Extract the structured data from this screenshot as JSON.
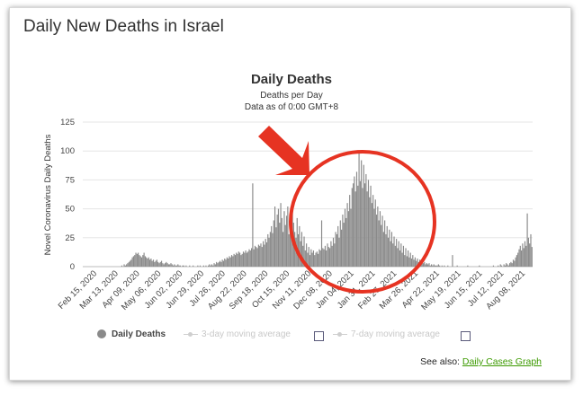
{
  "page": {
    "title": "Daily New Deaths in Israel"
  },
  "chart_data": {
    "type": "bar",
    "title": "Daily Deaths",
    "subtitle_1": "Deaths per Day",
    "subtitle_2": "Data as of 0:00 GMT+8",
    "ylabel": "Novel Coronavirus Daily Deaths",
    "ylim": [
      0,
      125
    ],
    "yticks": [
      "0",
      "25",
      "50",
      "75",
      "100",
      "125"
    ],
    "grid": true,
    "xticks": [
      "Feb 15, 2020",
      "Mar 13, 2020",
      "Apr 09, 2020",
      "May 06, 2020",
      "Jun 02, 2020",
      "Jun 29, 2020",
      "Jul 26, 2020",
      "Aug 22, 2020",
      "Sep 18, 2020",
      "Oct 15, 2020",
      "Nov 11, 2020",
      "Dec 08, 2020",
      "Jan 04, 2021",
      "Jan 31, 2021",
      "Feb 27, 2021",
      "Mar 26, 2021",
      "Apr 22, 2021",
      "May 19, 2021",
      "Jun 15, 2021",
      "Jul 12, 2021",
      "Aug 08, 2021"
    ],
    "series_name": "Daily Deaths",
    "values": [
      0,
      0,
      0,
      0,
      0,
      0,
      0,
      0,
      0,
      0,
      0,
      0,
      0,
      0,
      0,
      0,
      0,
      0,
      0,
      0,
      0,
      0,
      0,
      0,
      0,
      0,
      0,
      0,
      0,
      0,
      0,
      0,
      0,
      1,
      0,
      2,
      1,
      2,
      3,
      4,
      5,
      6,
      8,
      9,
      10,
      12,
      11,
      12,
      10,
      9,
      8,
      10,
      12,
      9,
      8,
      7,
      8,
      6,
      7,
      5,
      6,
      4,
      5,
      6,
      4,
      3,
      4,
      5,
      3,
      2,
      3,
      4,
      3,
      2,
      2,
      3,
      2,
      1,
      2,
      1,
      1,
      2,
      1,
      1,
      0,
      1,
      1,
      0,
      1,
      0,
      0,
      1,
      0,
      0,
      1,
      0,
      0,
      0,
      1,
      0,
      1,
      0,
      0,
      1,
      0,
      1,
      0,
      1,
      2,
      1,
      2,
      1,
      3,
      2,
      4,
      3,
      4,
      5,
      4,
      6,
      5,
      7,
      6,
      8,
      7,
      9,
      8,
      10,
      9,
      11,
      10,
      12,
      11,
      13,
      12,
      10,
      11,
      13,
      12,
      14,
      12,
      13,
      15,
      14,
      16,
      72,
      15,
      18,
      17,
      16,
      19,
      18,
      20,
      17,
      22,
      19,
      24,
      21,
      28,
      25,
      30,
      35,
      29,
      40,
      52,
      34,
      45,
      50,
      38,
      55,
      42,
      30,
      48,
      36,
      44,
      52,
      28,
      40,
      33,
      46,
      38,
      30,
      25,
      42,
      28,
      35,
      22,
      30,
      18,
      26,
      14,
      20,
      12,
      17,
      10,
      15,
      12,
      14,
      10,
      12,
      13,
      11,
      15,
      14,
      40,
      16,
      15,
      18,
      14,
      20,
      17,
      16,
      22,
      18,
      25,
      20,
      30,
      28,
      35,
      25,
      40,
      32,
      45,
      38,
      50,
      42,
      55,
      48,
      62,
      50,
      68,
      72,
      78,
      65,
      82,
      70,
      98,
      74,
      92,
      68,
      88,
      72,
      80,
      65,
      75,
      60,
      70,
      55,
      62,
      50,
      58,
      45,
      52,
      40,
      48,
      36,
      44,
      30,
      40,
      28,
      35,
      25,
      32,
      22,
      30,
      20,
      26,
      18,
      24,
      16,
      22,
      14,
      20,
      12,
      18,
      10,
      16,
      9,
      14,
      8,
      12,
      7,
      10,
      6,
      8,
      5,
      7,
      4,
      6,
      3,
      5,
      3,
      4,
      2,
      3,
      2,
      3,
      1,
      2,
      1,
      2,
      1,
      1,
      1,
      2,
      1,
      0,
      1,
      0,
      1,
      0,
      0,
      1,
      0,
      0,
      0,
      10,
      0,
      0,
      0,
      1,
      0,
      0,
      0,
      0,
      0,
      0,
      0,
      0,
      1,
      0,
      0,
      0,
      0,
      0,
      0,
      0,
      0,
      0,
      1,
      0,
      0,
      0,
      0,
      0,
      0,
      0,
      0,
      0,
      0,
      0,
      1,
      0,
      0,
      0,
      1,
      0,
      2,
      1,
      0,
      2,
      1,
      3,
      2,
      1,
      3,
      4,
      3,
      6,
      5,
      8,
      10,
      12,
      15,
      18,
      14,
      20,
      16,
      22,
      18,
      46,
      25,
      20,
      28,
      17
    ]
  },
  "legend": {
    "daily": "Daily Deaths",
    "avg3": "3-day moving average",
    "avg7": "7-day moving average"
  },
  "footer": {
    "see_also": "See also:",
    "link": "Daily Cases Graph"
  },
  "colors": {
    "bar": "#8a8a8a",
    "grid": "#e6e6e6",
    "annotation": "#e63322",
    "link": "#3c9a00"
  }
}
